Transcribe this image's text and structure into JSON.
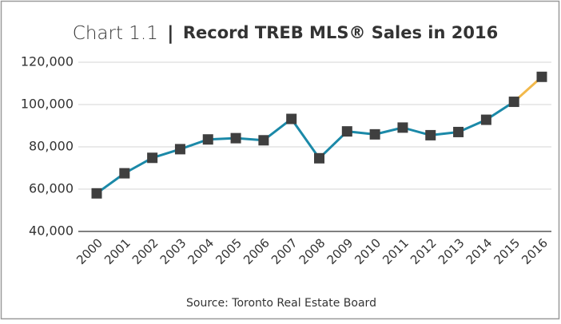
{
  "chart_data": {
    "type": "line",
    "title_parts": [
      "Chart 1.1",
      "|",
      "Record TREB MLS® Sales in 2016"
    ],
    "source": "Source: Toronto Real Estate Board",
    "categories": [
      "2000",
      "2001",
      "2002",
      "2003",
      "2004",
      "2005",
      "2006",
      "2007",
      "2008",
      "2009",
      "2010",
      "2011",
      "2012",
      "2013",
      "2014",
      "2015",
      "2016"
    ],
    "series": [
      {
        "color": "#1b89a8",
        "last_segment_color": "#f2b94b",
        "marker_color": "#3f3f3f",
        "values": [
          58000,
          67500,
          74800,
          78900,
          83500,
          84100,
          83100,
          93200,
          74600,
          87300,
          85900,
          89100,
          85500,
          87000,
          92800,
          101300,
          113100
        ]
      }
    ],
    "ylim": [
      40000,
      120000
    ],
    "yticks": [
      {
        "value": 40000,
        "label": "40,000"
      },
      {
        "value": 60000,
        "label": "60,000"
      },
      {
        "value": 80000,
        "label": "80,000"
      },
      {
        "value": 100000,
        "label": "100,000"
      },
      {
        "value": 120000,
        "label": "120,000"
      }
    ],
    "grid": true
  }
}
